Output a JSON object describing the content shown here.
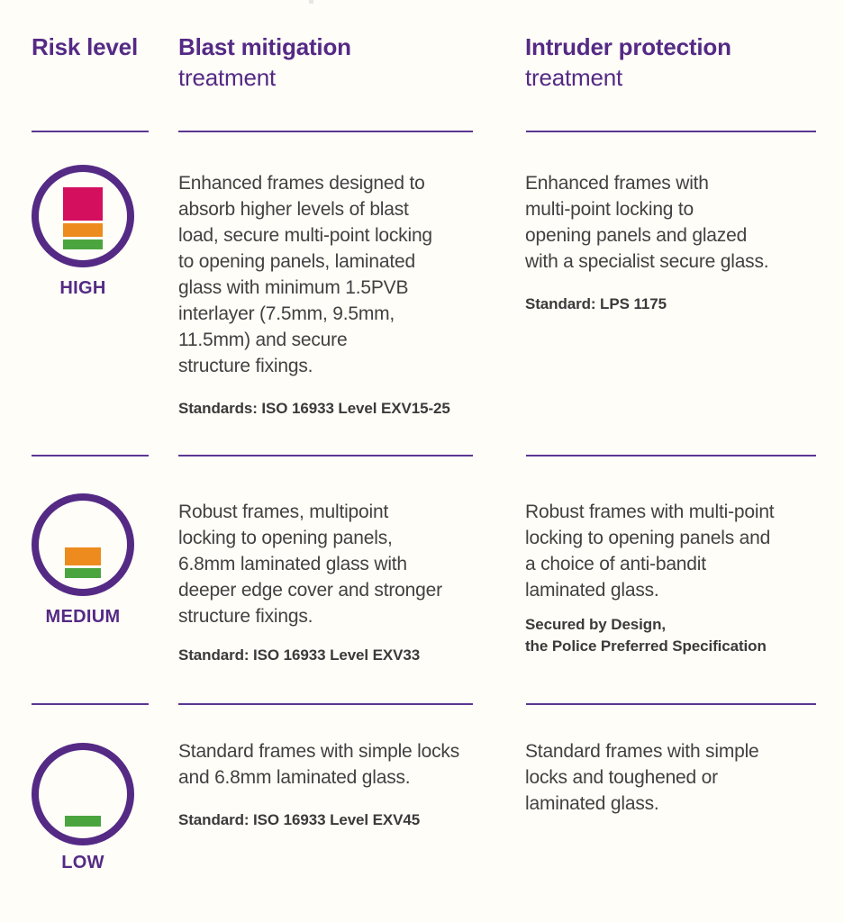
{
  "header": {
    "col1": "Risk level",
    "col2": {
      "line1": "Blast mitigation",
      "line2": "treatment"
    },
    "col3": {
      "line1": "Intruder protection",
      "line2": "treatment"
    }
  },
  "rows": [
    {
      "level": "HIGH",
      "icon_bars": [
        "crimson",
        "orange",
        "green"
      ],
      "blast": {
        "lines": [
          "Enhanced frames designed to",
          "absorb higher levels of blast",
          "load, secure multi-point locking",
          "to opening panels, laminated",
          "glass with minimum 1.5PVB",
          "interlayer (7.5mm, 9.5mm,",
          "11.5mm) and secure",
          "structure fixings."
        ],
        "standard": "Standards: ISO 16933 Level EXV15-25"
      },
      "intruder": {
        "lines": [
          "Enhanced frames with",
          "multi-point locking to",
          "opening panels and glazed",
          "with a specialist secure glass."
        ],
        "standard": "Standard: LPS 1175"
      }
    },
    {
      "level": "MEDIUM",
      "icon_bars": [
        "orange",
        "green"
      ],
      "blast": {
        "lines": [
          "Robust frames, multipoint",
          "locking to opening panels,",
          "6.8mm laminated glass with",
          "deeper edge cover and stronger",
          "structure fixings."
        ],
        "standard": "Standard: ISO 16933 Level EXV33"
      },
      "intruder": {
        "lines": [
          "Robust frames with multi-point",
          "locking to opening panels and",
          "a choice of anti-bandit",
          "laminated glass."
        ],
        "standard_lines": [
          "Secured by Design,",
          "the Police Preferred Specification"
        ]
      }
    },
    {
      "level": "LOW",
      "icon_bars": [
        "green"
      ],
      "blast": {
        "lines": [
          "Standard frames with simple locks",
          "and 6.8mm laminated glass."
        ],
        "standard": "Standard: ISO 16933 Level EXV45"
      },
      "intruder": {
        "lines": [
          "Standard frames with simple",
          "locks and toughened or",
          "laminated glass."
        ]
      }
    }
  ],
  "colors": {
    "purple": "#542a85",
    "rule": "#5d3693",
    "crimson": "#d40f5e",
    "orange": "#ee8b1e",
    "green": "#4ba53f",
    "text": "#414141",
    "background": "#fffdf8"
  }
}
